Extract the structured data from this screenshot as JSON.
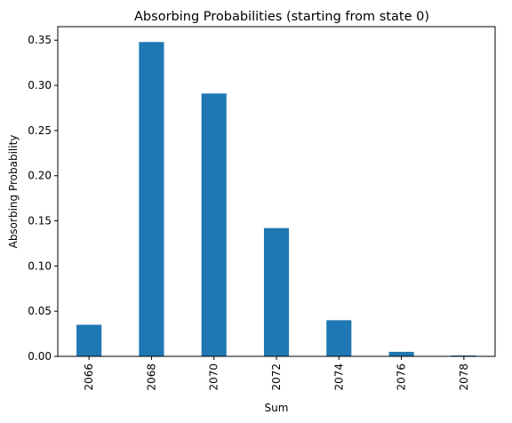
{
  "chart_data": {
    "type": "bar",
    "title": "Absorbing Probabilities (starting from state 0)",
    "xlabel": "Sum",
    "ylabel": "Absorbing Probability",
    "categories": [
      "2066",
      "2068",
      "2070",
      "2072",
      "2074",
      "2076",
      "2078"
    ],
    "values": [
      0.035,
      0.348,
      0.291,
      0.142,
      0.04,
      0.005,
      0.001
    ],
    "ylim": [
      0,
      0.365
    ],
    "yticks": [
      0.0,
      0.05,
      0.1,
      0.15,
      0.2,
      0.25,
      0.3,
      0.35
    ],
    "ytick_labels": [
      "0.00",
      "0.05",
      "0.10",
      "0.15",
      "0.20",
      "0.25",
      "0.30",
      "0.35"
    ],
    "bar_color": "#1f77b4",
    "grid": false,
    "legend": "none",
    "x_tick_rotation": "vertical"
  }
}
